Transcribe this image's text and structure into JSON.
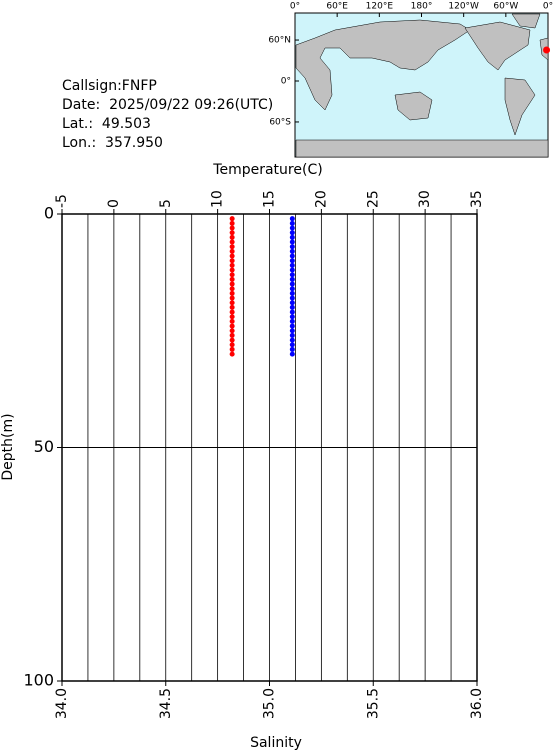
{
  "info": {
    "lines": [
      "Callsign:FNFP",
      "Date:  2025/09/22 09:26(UTC)",
      "Lat.:  49.503",
      "Lon.:  357.950"
    ]
  },
  "map": {
    "lon_ticks": [
      {
        "value": 0,
        "label": "0°"
      },
      {
        "value": 60,
        "label": "60°E"
      },
      {
        "value": 120,
        "label": "120°E"
      },
      {
        "value": 180,
        "label": "180°"
      },
      {
        "value": 240,
        "label": "120°W"
      },
      {
        "value": 300,
        "label": "60°W"
      },
      {
        "value": 360,
        "label": "0°"
      }
    ],
    "lat_ticks": [
      {
        "value": 60,
        "label": "60°N"
      },
      {
        "value": 0,
        "label": "0°"
      },
      {
        "value": -60,
        "label": "60°S"
      }
    ],
    "station": {
      "lat": 49.503,
      "lon": 357.95,
      "color": "#ff0000"
    }
  },
  "chart_data": {
    "type": "scatter",
    "x2_label": "Temperature(C)",
    "x_label": "Salinity",
    "y_label": "Depth(m)",
    "x2lim": [
      -5,
      35
    ],
    "x2ticks": [
      -5,
      0,
      5,
      10,
      15,
      20,
      25,
      30,
      35
    ],
    "xlim": [
      34,
      36
    ],
    "xticks": [
      {
        "value": 34,
        "label": "34.0"
      },
      34.5,
      {
        "value": 35,
        "label": "35.0"
      },
      35.5,
      {
        "value": 36,
        "label": "36.0"
      }
    ],
    "xgrid": [
      34.125,
      34.25,
      34.375,
      34.5,
      34.625,
      34.75,
      34.875,
      35,
      35.125,
      35.25,
      35.375,
      35.5,
      35.625,
      35.75,
      35.875
    ],
    "ylim": [
      0,
      100
    ],
    "yticks": [
      0,
      50,
      100
    ],
    "y_inverted": true,
    "depth": [
      1,
      2,
      3,
      4,
      5,
      6,
      7,
      8,
      9,
      10,
      11,
      12,
      13,
      14,
      15,
      16,
      17,
      18,
      19,
      20,
      21,
      22,
      23,
      24,
      25,
      26,
      27,
      28,
      29,
      30
    ],
    "series": [
      {
        "color": "#ff0000",
        "axis": "x2",
        "values": [
          11.4,
          11.4,
          11.4,
          11.4,
          11.4,
          11.4,
          11.4,
          11.4,
          11.4,
          11.4,
          11.4,
          11.4,
          11.4,
          11.4,
          11.4,
          11.4,
          11.4,
          11.4,
          11.4,
          11.4,
          11.4,
          11.4,
          11.4,
          11.4,
          11.4,
          11.4,
          11.4,
          11.4,
          11.4,
          11.4
        ]
      },
      {
        "color": "#0000ff",
        "axis": "x",
        "values": [
          35.11,
          35.11,
          35.11,
          35.11,
          35.11,
          35.11,
          35.11,
          35.11,
          35.11,
          35.11,
          35.11,
          35.11,
          35.11,
          35.11,
          35.11,
          35.11,
          35.11,
          35.11,
          35.11,
          35.11,
          35.11,
          35.11,
          35.11,
          35.11,
          35.11,
          35.11,
          35.11,
          35.11,
          35.11,
          35.11
        ]
      }
    ]
  }
}
